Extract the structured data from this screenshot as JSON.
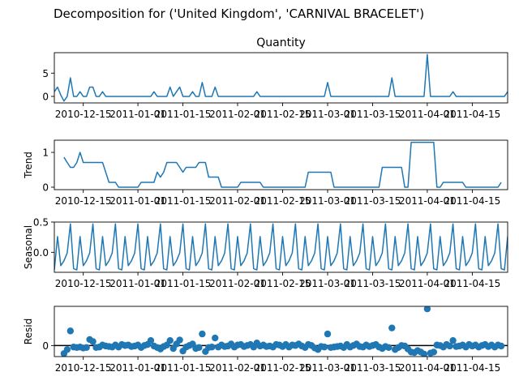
{
  "chart_data": {
    "type": "line",
    "title": "Decomposition for ('United Kingdom', 'CARNIVAL BRACELET')",
    "x_start": "2010-12-06",
    "x_end": "2011-04-26",
    "x_ticks": [
      "2010-12-15",
      "2011-01-01",
      "2011-01-15",
      "2011-02-01",
      "2011-02-15",
      "2011-03-01",
      "2011-03-15",
      "2011-04-01",
      "2011-04-15"
    ],
    "x_tick_dates": [
      "2010-12-15",
      "2011-01-01",
      "2011-01-15",
      "2011-02-01",
      "2011-02-15",
      "2011-03-01",
      "2011-03-15",
      "2011-04-01",
      "2011-04-15"
    ],
    "line_color": "#1f77b4",
    "panels": [
      {
        "name": "observed",
        "subtitle": "Quantity",
        "ylabel": "",
        "style": "line",
        "ylim": [
          -1.4,
          9.4
        ],
        "yticks": [
          0,
          5
        ],
        "points": [
          [
            "2010-12-06",
            1
          ],
          [
            "2010-12-07",
            2
          ],
          [
            "2010-12-08",
            0.3
          ],
          [
            "2010-12-09",
            -1
          ],
          [
            "2010-12-10",
            0
          ],
          [
            "2010-12-11",
            4
          ],
          [
            "2010-12-12",
            0
          ],
          [
            "2010-12-13",
            0
          ],
          [
            "2010-12-14",
            1
          ],
          [
            "2010-12-15",
            0
          ],
          [
            "2010-12-16",
            0
          ],
          [
            "2010-12-17",
            2
          ],
          [
            "2010-12-18",
            2
          ],
          [
            "2010-12-19",
            0
          ],
          [
            "2010-12-20",
            0
          ],
          [
            "2010-12-21",
            1
          ],
          [
            "2010-12-22",
            0
          ],
          [
            "2011-01-05",
            0
          ],
          [
            "2011-01-06",
            1
          ],
          [
            "2011-01-07",
            0
          ],
          [
            "2011-01-10",
            0
          ],
          [
            "2011-01-11",
            2
          ],
          [
            "2011-01-12",
            0
          ],
          [
            "2011-01-13",
            1
          ],
          [
            "2011-01-14",
            2
          ],
          [
            "2011-01-15",
            0
          ],
          [
            "2011-01-17",
            0
          ],
          [
            "2011-01-18",
            1
          ],
          [
            "2011-01-19",
            0
          ],
          [
            "2011-01-20",
            0
          ],
          [
            "2011-01-21",
            3
          ],
          [
            "2011-01-22",
            0
          ],
          [
            "2011-01-24",
            0
          ],
          [
            "2011-01-25",
            2
          ],
          [
            "2011-01-26",
            0
          ],
          [
            "2011-02-06",
            0
          ],
          [
            "2011-02-07",
            1
          ],
          [
            "2011-02-08",
            0
          ],
          [
            "2011-02-28",
            0
          ],
          [
            "2011-03-01",
            3
          ],
          [
            "2011-03-02",
            0
          ],
          [
            "2011-03-20",
            0
          ],
          [
            "2011-03-21",
            4
          ],
          [
            "2011-03-22",
            0
          ],
          [
            "2011-03-31",
            0
          ],
          [
            "2011-04-01",
            9
          ],
          [
            "2011-04-02",
            0
          ],
          [
            "2011-04-08",
            0
          ],
          [
            "2011-04-09",
            1
          ],
          [
            "2011-04-10",
            0
          ],
          [
            "2011-04-25",
            0
          ],
          [
            "2011-04-26",
            1
          ]
        ]
      },
      {
        "name": "trend",
        "subtitle": "",
        "ylabel": "Trend",
        "style": "line",
        "ylim": [
          -0.07,
          1.35
        ],
        "yticks": [
          0,
          1
        ],
        "points": [
          [
            "2010-12-09",
            0.86
          ],
          [
            "2010-12-10",
            0.71
          ],
          [
            "2010-12-11",
            0.57
          ],
          [
            "2010-12-12",
            0.57
          ],
          [
            "2010-12-13",
            0.71
          ],
          [
            "2010-12-14",
            1.0
          ],
          [
            "2010-12-15",
            0.71
          ],
          [
            "2010-12-21",
            0.71
          ],
          [
            "2010-12-23",
            0.14
          ],
          [
            "2010-12-25",
            0.14
          ],
          [
            "2010-12-26",
            0.0
          ],
          [
            "2011-01-01",
            0.0
          ],
          [
            "2011-01-02",
            0.14
          ],
          [
            "2011-01-06",
            0.14
          ],
          [
            "2011-01-07",
            0.43
          ],
          [
            "2011-01-08",
            0.29
          ],
          [
            "2011-01-09",
            0.43
          ],
          [
            "2011-01-10",
            0.71
          ],
          [
            "2011-01-13",
            0.71
          ],
          [
            "2011-01-14",
            0.57
          ],
          [
            "2011-01-15",
            0.43
          ],
          [
            "2011-01-16",
            0.57
          ],
          [
            "2011-01-19",
            0.57
          ],
          [
            "2011-01-20",
            0.71
          ],
          [
            "2011-01-22",
            0.71
          ],
          [
            "2011-01-23",
            0.29
          ],
          [
            "2011-01-26",
            0.29
          ],
          [
            "2011-01-27",
            0.0
          ],
          [
            "2011-02-01",
            0.0
          ],
          [
            "2011-02-02",
            0.14
          ],
          [
            "2011-02-08",
            0.14
          ],
          [
            "2011-02-09",
            0.0
          ],
          [
            "2011-02-22",
            0.0
          ],
          [
            "2011-02-23",
            0.43
          ],
          [
            "2011-03-02",
            0.43
          ],
          [
            "2011-03-03",
            0.0
          ],
          [
            "2011-03-17",
            0.0
          ],
          [
            "2011-03-18",
            0.57
          ],
          [
            "2011-03-24",
            0.57
          ],
          [
            "2011-03-25",
            0.0
          ],
          [
            "2011-03-26",
            0.0
          ],
          [
            "2011-03-27",
            1.29
          ],
          [
            "2011-04-03",
            1.29
          ],
          [
            "2011-04-04",
            0.0
          ],
          [
            "2011-04-05",
            0.0
          ],
          [
            "2011-04-06",
            0.14
          ],
          [
            "2011-04-12",
            0.14
          ],
          [
            "2011-04-13",
            0.0
          ],
          [
            "2011-04-23",
            0.0
          ],
          [
            "2011-04-24",
            0.14
          ]
        ]
      },
      {
        "name": "seasonal",
        "subtitle": "",
        "ylabel": "Seasonal",
        "style": "seasonal",
        "ylim": [
          -0.33,
          0.5
        ],
        "yticks": [
          -0.0,
          0.5
        ],
        "ytick_labels": [
          "0.0",
          "0.5"
        ],
        "pattern": [
          -0.29,
          0.26,
          -0.22,
          -0.14,
          -0.01,
          0.47,
          -0.27
        ],
        "pattern_start": "2010-12-06"
      },
      {
        "name": "resid",
        "subtitle": "",
        "ylabel": "Resid",
        "style": "scatter",
        "ylim": [
          -2.2,
          7.8
        ],
        "yticks": [
          0
        ],
        "points": [
          [
            "2010-12-09",
            -1.6
          ],
          [
            "2010-12-10",
            -0.8
          ],
          [
            "2010-12-11",
            2.9
          ],
          [
            "2010-12-12",
            -0.3
          ],
          [
            "2010-12-13",
            -0.4
          ],
          [
            "2010-12-14",
            -0.3
          ],
          [
            "2010-12-15",
            -0.5
          ],
          [
            "2010-12-16",
            -0.4
          ],
          [
            "2010-12-17",
            1.2
          ],
          [
            "2010-12-18",
            0.8
          ],
          [
            "2010-12-19",
            -0.4
          ],
          [
            "2010-12-20",
            -0.3
          ],
          [
            "2010-12-21",
            0.1
          ],
          [
            "2010-12-22",
            -0.1
          ],
          [
            "2010-12-23",
            -0.2
          ],
          [
            "2010-12-24",
            -0.3
          ],
          [
            "2010-12-25",
            0.1
          ],
          [
            "2010-12-26",
            -0.3
          ],
          [
            "2010-12-27",
            0.2
          ],
          [
            "2010-12-28",
            0.0
          ],
          [
            "2010-12-29",
            0.1
          ],
          [
            "2010-12-30",
            -0.2
          ],
          [
            "2010-12-31",
            -0.1
          ],
          [
            "2011-01-01",
            0.1
          ],
          [
            "2011-01-02",
            -0.4
          ],
          [
            "2011-01-03",
            0.0
          ],
          [
            "2011-01-04",
            0.2
          ],
          [
            "2011-01-05",
            1.0
          ],
          [
            "2011-01-06",
            -0.1
          ],
          [
            "2011-01-07",
            -0.4
          ],
          [
            "2011-01-08",
            -0.7
          ],
          [
            "2011-01-09",
            -0.2
          ],
          [
            "2011-01-10",
            0.1
          ],
          [
            "2011-01-11",
            1.0
          ],
          [
            "2011-01-12",
            -0.6
          ],
          [
            "2011-01-13",
            0.3
          ],
          [
            "2011-01-14",
            1.1
          ],
          [
            "2011-01-15",
            -1.1
          ],
          [
            "2011-01-16",
            -0.3
          ],
          [
            "2011-01-17",
            0.0
          ],
          [
            "2011-01-18",
            0.3
          ],
          [
            "2011-01-19",
            -0.6
          ],
          [
            "2011-01-20",
            -0.4
          ],
          [
            "2011-01-21",
            2.3
          ],
          [
            "2011-01-22",
            -1.2
          ],
          [
            "2011-01-23",
            -0.4
          ],
          [
            "2011-01-24",
            -0.3
          ],
          [
            "2011-01-25",
            1.5
          ],
          [
            "2011-01-26",
            -0.3
          ],
          [
            "2011-01-27",
            0.1
          ],
          [
            "2011-01-28",
            -0.2
          ],
          [
            "2011-01-29",
            -0.1
          ],
          [
            "2011-01-30",
            0.3
          ],
          [
            "2011-01-31",
            -0.3
          ],
          [
            "2011-02-01",
            0.1
          ],
          [
            "2011-02-02",
            0.2
          ],
          [
            "2011-02-03",
            -0.2
          ],
          [
            "2011-02-04",
            0.0
          ],
          [
            "2011-02-05",
            0.2
          ],
          [
            "2011-02-06",
            -0.3
          ],
          [
            "2011-02-07",
            0.5
          ],
          [
            "2011-02-08",
            -0.1
          ],
          [
            "2011-02-09",
            0.1
          ],
          [
            "2011-02-10",
            -0.2
          ],
          [
            "2011-02-11",
            -0.1
          ],
          [
            "2011-02-12",
            -0.3
          ],
          [
            "2011-02-13",
            0.2
          ],
          [
            "2011-02-14",
            0.1
          ],
          [
            "2011-02-15",
            -0.2
          ],
          [
            "2011-02-16",
            0.2
          ],
          [
            "2011-02-17",
            -0.3
          ],
          [
            "2011-02-18",
            0.1
          ],
          [
            "2011-02-19",
            0.0
          ],
          [
            "2011-02-20",
            0.3
          ],
          [
            "2011-02-21",
            -0.1
          ],
          [
            "2011-02-22",
            -0.4
          ],
          [
            "2011-02-23",
            0.2
          ],
          [
            "2011-02-24",
            0.0
          ],
          [
            "2011-02-25",
            -0.5
          ],
          [
            "2011-02-26",
            -0.8
          ],
          [
            "2011-02-27",
            -0.2
          ],
          [
            "2011-02-28",
            -0.3
          ],
          [
            "2011-03-01",
            2.3
          ],
          [
            "2011-03-02",
            -0.4
          ],
          [
            "2011-03-03",
            -0.3
          ],
          [
            "2011-03-04",
            -0.2
          ],
          [
            "2011-03-05",
            -0.1
          ],
          [
            "2011-03-06",
            -0.4
          ],
          [
            "2011-03-07",
            0.2
          ],
          [
            "2011-03-08",
            -0.3
          ],
          [
            "2011-03-09",
            0.0
          ],
          [
            "2011-03-10",
            0.3
          ],
          [
            "2011-03-11",
            -0.2
          ],
          [
            "2011-03-12",
            -0.3
          ],
          [
            "2011-03-13",
            0.1
          ],
          [
            "2011-03-14",
            -0.2
          ],
          [
            "2011-03-15",
            0.0
          ],
          [
            "2011-03-16",
            0.2
          ],
          [
            "2011-03-17",
            -0.3
          ],
          [
            "2011-03-18",
            -0.6
          ],
          [
            "2011-03-19",
            -0.2
          ],
          [
            "2011-03-20",
            -0.4
          ],
          [
            "2011-03-21",
            3.5
          ],
          [
            "2011-03-22",
            -0.8
          ],
          [
            "2011-03-23",
            -0.4
          ],
          [
            "2011-03-24",
            0.0
          ],
          [
            "2011-03-25",
            -0.1
          ],
          [
            "2011-03-26",
            -0.7
          ],
          [
            "2011-03-27",
            -1.3
          ],
          [
            "2011-03-28",
            -1.4
          ],
          [
            "2011-03-29",
            -1.0
          ],
          [
            "2011-03-30",
            -1.3
          ],
          [
            "2011-03-31",
            -1.7
          ],
          [
            "2011-04-01",
            7.3
          ],
          [
            "2011-04-02",
            -1.5
          ],
          [
            "2011-04-03",
            -1.3
          ],
          [
            "2011-04-04",
            0.1
          ],
          [
            "2011-04-05",
            0.0
          ],
          [
            "2011-04-06",
            -0.3
          ],
          [
            "2011-04-07",
            0.2
          ],
          [
            "2011-04-08",
            -0.1
          ],
          [
            "2011-04-09",
            1.0
          ],
          [
            "2011-04-10",
            -0.2
          ],
          [
            "2011-04-11",
            -0.1
          ],
          [
            "2011-04-12",
            0.1
          ],
          [
            "2011-04-13",
            -0.3
          ],
          [
            "2011-04-14",
            0.2
          ],
          [
            "2011-04-15",
            -0.1
          ],
          [
            "2011-04-16",
            0.1
          ],
          [
            "2011-04-17",
            -0.3
          ],
          [
            "2011-04-18",
            0.0
          ],
          [
            "2011-04-19",
            0.2
          ],
          [
            "2011-04-20",
            -0.2
          ],
          [
            "2011-04-21",
            0.1
          ],
          [
            "2011-04-22",
            -0.3
          ],
          [
            "2011-04-23",
            0.1
          ],
          [
            "2011-04-24",
            -0.1
          ]
        ]
      }
    ]
  }
}
